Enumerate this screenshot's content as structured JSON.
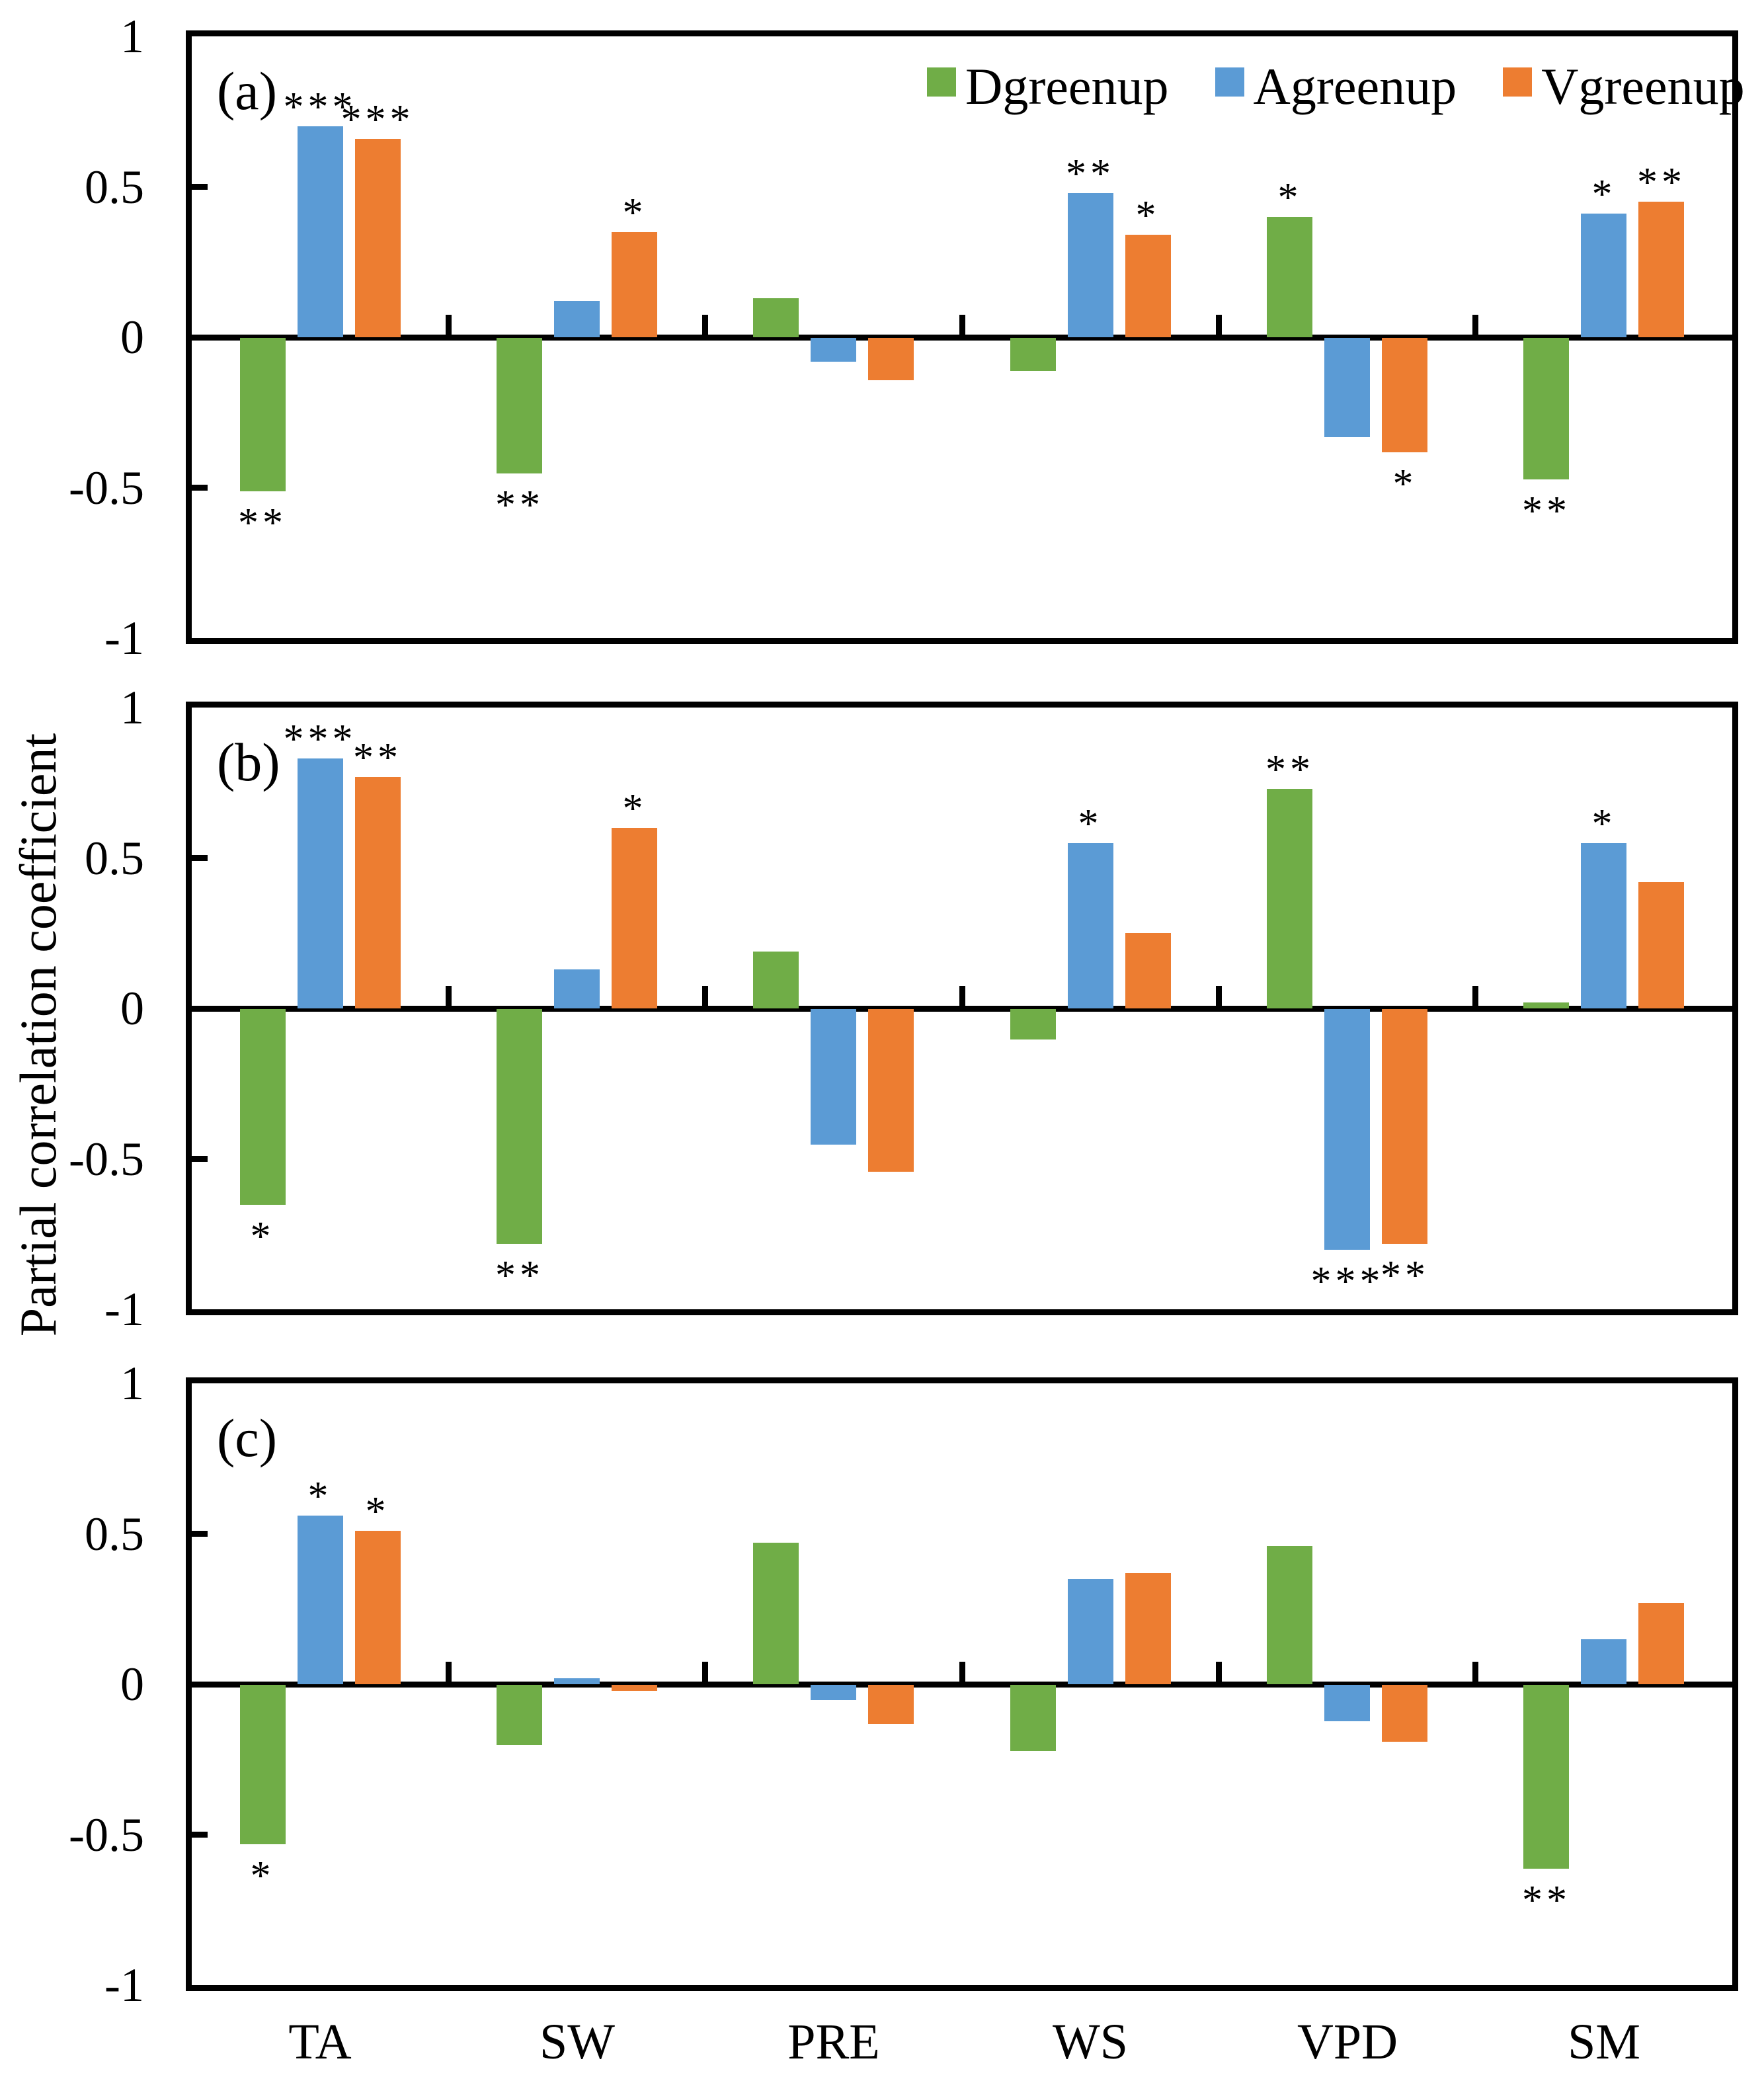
{
  "figure": {
    "ylabel": "Partial correlation coefficient",
    "y_ticks": [
      "1",
      "0.5",
      "0",
      "-0.5",
      "-1"
    ],
    "y_tick_values": [
      1,
      0.5,
      0,
      -0.5,
      -1
    ],
    "categories": [
      "TA",
      "SW",
      "PRE",
      "WS",
      "VPD",
      "SM"
    ],
    "legend": [
      {
        "label": "Dgreenup",
        "color": "#70AD47"
      },
      {
        "label": "Agreenup",
        "color": "#5B9BD5"
      },
      {
        "label": "Vgreenup",
        "color": "#ED7D31"
      }
    ],
    "axis_color": "#000000",
    "background_color": "#ffffff"
  },
  "chart_data": [
    {
      "type": "bar",
      "panel_label": "(a)",
      "categories": [
        "TA",
        "SW",
        "PRE",
        "WS",
        "VPD",
        "SM"
      ],
      "ylim": [
        -1,
        1
      ],
      "grid": false,
      "legend_position": "top-right-inside",
      "series": [
        {
          "name": "Dgreenup",
          "color": "#70AD47",
          "values": [
            -0.51,
            -0.45,
            0.13,
            -0.11,
            0.4,
            -0.47
          ],
          "sig": [
            "**",
            "**",
            "",
            "",
            "*",
            "**"
          ]
        },
        {
          "name": "Agreenup",
          "color": "#5B9BD5",
          "values": [
            0.7,
            0.12,
            -0.08,
            0.48,
            -0.33,
            0.41
          ],
          "sig": [
            "***",
            "",
            "",
            "**",
            "",
            "*"
          ]
        },
        {
          "name": "Vgreenup",
          "color": "#ED7D31",
          "values": [
            0.66,
            0.35,
            -0.14,
            0.34,
            -0.38,
            0.45
          ],
          "sig": [
            "***",
            "*",
            "",
            "*",
            "*",
            "**"
          ]
        }
      ]
    },
    {
      "type": "bar",
      "panel_label": "(b)",
      "categories": [
        "TA",
        "SW",
        "PRE",
        "WS",
        "VPD",
        "SM"
      ],
      "ylim": [
        -1,
        1
      ],
      "grid": false,
      "series": [
        {
          "name": "Dgreenup",
          "color": "#70AD47",
          "values": [
            -0.65,
            -0.78,
            0.19,
            -0.1,
            0.73,
            0.02
          ],
          "sig": [
            "*",
            "**",
            "",
            "",
            "**",
            ""
          ]
        },
        {
          "name": "Agreenup",
          "color": "#5B9BD5",
          "values": [
            0.83,
            0.13,
            -0.45,
            0.55,
            -0.8,
            0.55
          ],
          "sig": [
            "***",
            "",
            "",
            "*",
            "***",
            "*"
          ]
        },
        {
          "name": "Vgreenup",
          "color": "#ED7D31",
          "values": [
            0.77,
            0.6,
            -0.54,
            0.25,
            -0.78,
            0.42
          ],
          "sig": [
            "**",
            "*",
            "",
            "",
            "**",
            ""
          ]
        }
      ]
    },
    {
      "type": "bar",
      "panel_label": "(c)",
      "categories": [
        "TA",
        "SW",
        "PRE",
        "WS",
        "VPD",
        "SM"
      ],
      "ylim": [
        -1,
        1
      ],
      "grid": false,
      "series": [
        {
          "name": "Dgreenup",
          "color": "#70AD47",
          "values": [
            -0.53,
            -0.2,
            0.47,
            -0.22,
            0.46,
            -0.61
          ],
          "sig": [
            "*",
            "",
            "",
            "",
            "",
            "**"
          ]
        },
        {
          "name": "Agreenup",
          "color": "#5B9BD5",
          "values": [
            0.56,
            0.02,
            -0.05,
            0.35,
            -0.12,
            0.15
          ],
          "sig": [
            "*",
            "",
            "",
            "",
            "",
            ""
          ]
        },
        {
          "name": "Vgreenup",
          "color": "#ED7D31",
          "values": [
            0.51,
            -0.02,
            -0.13,
            0.37,
            -0.19,
            0.27
          ],
          "sig": [
            "*",
            "",
            "",
            "",
            "",
            ""
          ]
        }
      ]
    }
  ]
}
